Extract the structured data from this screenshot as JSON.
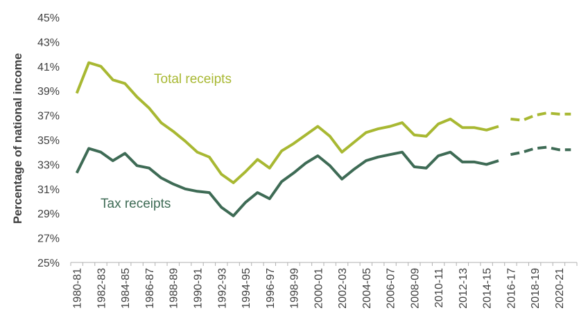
{
  "chart_data": {
    "type": "line",
    "ylabel": "Percentage of national income",
    "ylim": [
      25,
      45
    ],
    "yticks": [
      25,
      27,
      29,
      31,
      33,
      35,
      37,
      39,
      41,
      43,
      45
    ],
    "ytick_labels": [
      "25%",
      "27%",
      "29%",
      "31%",
      "33%",
      "35%",
      "37%",
      "39%",
      "41%",
      "43%",
      "45%"
    ],
    "grid": false,
    "categories": [
      "1980-81",
      "1981-82",
      "1982-83",
      "1983-84",
      "1984-85",
      "1985-86",
      "1986-87",
      "1987-88",
      "1988-89",
      "1989-90",
      "1990-91",
      "1991-92",
      "1992-93",
      "1993-94",
      "1994-95",
      "1995-96",
      "1996-97",
      "1997-98",
      "1998-99",
      "1999-00",
      "2000-01",
      "2001-02",
      "2002-03",
      "2003-04",
      "2004-05",
      "2005-06",
      "2006-07",
      "2007-08",
      "2008-09",
      "2009-10",
      "2010-11",
      "2011-12",
      "2012-13",
      "2013-14",
      "2014-15",
      "2015-16",
      "2016-17",
      "2017-18",
      "2018-19",
      "2019-20",
      "2020-21",
      "2021-22"
    ],
    "xtick_labels": [
      "1980-81",
      "1982-83",
      "1984-85",
      "1986-87",
      "1988-89",
      "1990-91",
      "1992-93",
      "1994-95",
      "1996-97",
      "1998-99",
      "2000-01",
      "2002-03",
      "2004-05",
      "2006-07",
      "2008-09",
      "2010-11",
      "2012-13",
      "2014-15",
      "2016-17",
      "2018-19",
      "2020-21"
    ],
    "forecast_start": "2016-17",
    "series": [
      {
        "name": "Total receipts",
        "color": "#a8b832",
        "values": [
          38.8,
          41.3,
          41.0,
          39.9,
          39.6,
          38.5,
          37.6,
          36.4,
          35.7,
          34.9,
          34.0,
          33.6,
          32.2,
          31.5,
          32.4,
          33.4,
          32.7,
          34.1,
          34.7,
          35.4,
          36.1,
          35.3,
          34.0,
          34.8,
          35.6,
          35.9,
          36.1,
          36.4,
          35.4,
          35.3,
          36.3,
          36.7,
          36.0,
          36.0,
          35.8,
          36.1,
          36.7,
          36.6,
          37.0,
          37.2,
          37.1,
          37.1
        ]
      },
      {
        "name": "Tax receipts",
        "color": "#3e6b55",
        "values": [
          32.3,
          34.3,
          34.0,
          33.3,
          33.9,
          32.9,
          32.7,
          31.9,
          31.4,
          31.0,
          30.8,
          30.7,
          29.5,
          28.8,
          29.9,
          30.7,
          30.2,
          31.6,
          32.3,
          33.1,
          33.7,
          32.9,
          31.8,
          32.6,
          33.3,
          33.6,
          33.8,
          34.0,
          32.8,
          32.7,
          33.7,
          34.0,
          33.2,
          33.2,
          33.0,
          33.3,
          33.8,
          34.0,
          34.3,
          34.4,
          34.2,
          34.2
        ]
      }
    ]
  }
}
